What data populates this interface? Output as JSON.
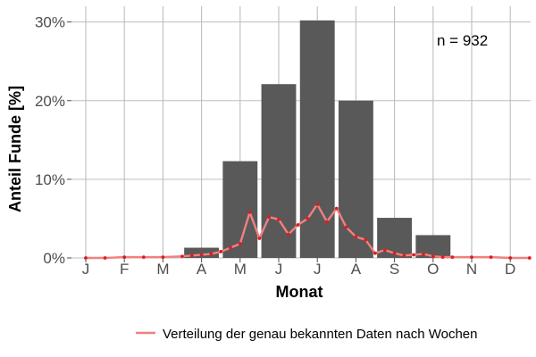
{
  "chart_data": {
    "type": "bar",
    "categories": [
      "J",
      "F",
      "M",
      "A",
      "M",
      "J",
      "J",
      "A",
      "S",
      "O",
      "N",
      "D"
    ],
    "values": [
      0,
      0.1,
      0,
      1.3,
      12.3,
      22.1,
      30.2,
      20.0,
      5.1,
      2.9,
      0,
      0
    ],
    "bar_color": "#595959",
    "xlabel": "Monat",
    "ylabel": "Anteil Funde [%]",
    "ylim": [
      0,
      32
    ],
    "yticks": [
      0,
      10,
      20,
      30
    ],
    "ytick_labels": [
      "0%",
      "10%",
      "20%",
      "30%"
    ],
    "annotation": "n = 932",
    "grid": true,
    "legend_position": "bottom-right",
    "series": [
      {
        "name": "Verteilung der genau bekannten Daten nach Wochen",
        "type": "line",
        "color": "#f08080",
        "point_color": "#e31a1c",
        "x": [
          1.0,
          1.5,
          2.0,
          2.5,
          3.0,
          3.5,
          3.75,
          4.0,
          4.25,
          4.5,
          4.75,
          5.0,
          5.25,
          5.5,
          5.75,
          6.0,
          6.25,
          6.5,
          6.75,
          7.0,
          7.25,
          7.5,
          7.75,
          8.0,
          8.25,
          8.5,
          8.75,
          9.0,
          9.25,
          9.5,
          9.75,
          10.0,
          10.25,
          10.5,
          11.0,
          11.5,
          12.0,
          12.5
        ],
        "y": [
          0.0,
          0.0,
          0.1,
          0.1,
          0.1,
          0.2,
          0.3,
          0.4,
          0.5,
          0.8,
          1.3,
          1.8,
          5.8,
          2.5,
          5.2,
          4.9,
          3.0,
          4.2,
          5.0,
          6.8,
          4.6,
          6.3,
          3.9,
          2.7,
          2.3,
          0.6,
          1.0,
          0.6,
          0.3,
          0.4,
          0.5,
          0.2,
          0.1,
          0.1,
          0.1,
          0.1,
          0.0,
          0.0
        ]
      }
    ]
  }
}
